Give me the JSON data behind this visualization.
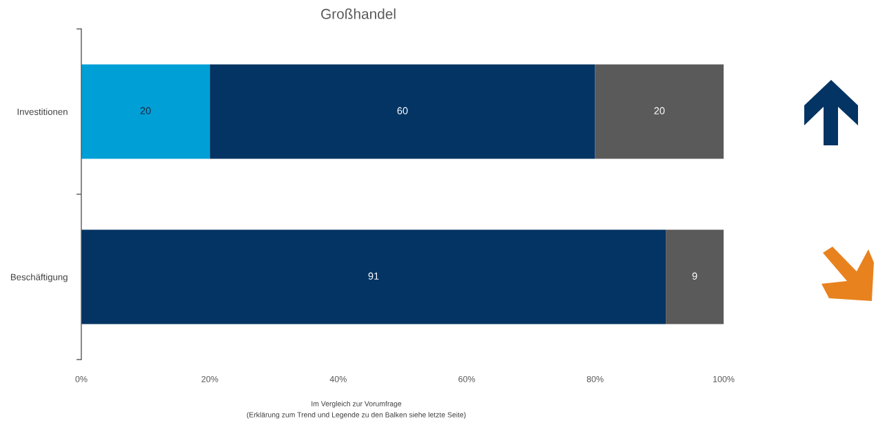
{
  "chart_data": {
    "type": "bar",
    "orientation": "horizontal",
    "stacked": true,
    "title": "Großhandel",
    "categories": [
      "Investitionen",
      "Beschäftigung"
    ],
    "series": [
      {
        "color": "#009fd6",
        "values": [
          20,
          null
        ]
      },
      {
        "color": "#033463",
        "values": [
          60,
          91
        ]
      },
      {
        "color": "#5a5a5a",
        "values": [
          20,
          9
        ]
      }
    ],
    "xlim": [
      0,
      100
    ],
    "xticks": [
      {
        "value": 0,
        "label": "0%"
      },
      {
        "value": 20,
        "label": "20%"
      },
      {
        "value": 40,
        "label": "40%"
      },
      {
        "value": 60,
        "label": "60%"
      },
      {
        "value": 80,
        "label": "80%"
      },
      {
        "value": 100,
        "label": "100%"
      }
    ],
    "data_labels": true,
    "annotations": [
      "Im Vergleich zur Vorumfrage",
      "(Erklärung zum Trend und Legende zu den Balken siehe letzte Seite)"
    ]
  }
}
